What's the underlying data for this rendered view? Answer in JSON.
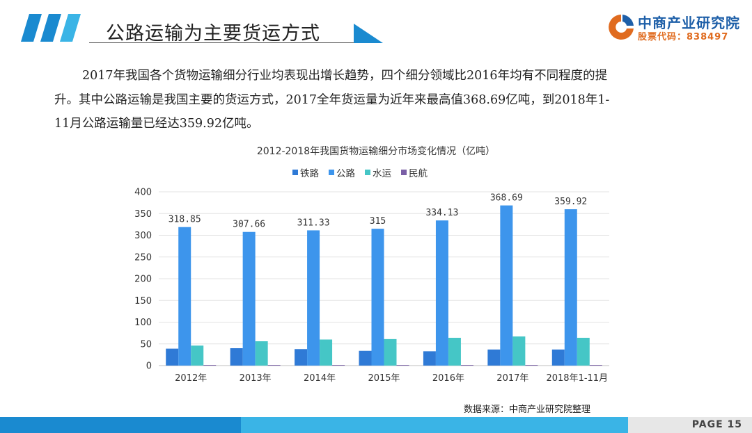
{
  "header": {
    "title": "公路运输为主要货运方式"
  },
  "logo": {
    "name": "中商产业研究院",
    "code": "股票代码：838497"
  },
  "paragraph": {
    "line1": "2017年我国各个货物运输细分行业均表现出增长趋势，四个细分领域比2016年均有不同程度的提",
    "line2": "升。其中公路运输是我国主要的货运方式，2017全年货运量为近年来最高值368.69亿吨，到2018年1-",
    "line3": "11月公路运输量已经达359.92亿吨。"
  },
  "chart_data": {
    "type": "bar",
    "title": "2012-2018年我国货物运输细分市场变化情况（亿吨）",
    "categories": [
      "2012年",
      "2013年",
      "2014年",
      "2015年",
      "2016年",
      "2017年",
      "2018年1-11月"
    ],
    "ylim": [
      0,
      400
    ],
    "yticks": [
      0,
      50,
      100,
      150,
      200,
      250,
      300,
      350,
      400
    ],
    "legend_position": "top-center",
    "grid": true,
    "series": [
      {
        "name": "铁路",
        "color": "#2f7ad6",
        "values": [
          39,
          40,
          38,
          34,
          33,
          37,
          37
        ],
        "labels": null
      },
      {
        "name": "公路",
        "color": "#3d95ec",
        "values": [
          318.85,
          307.66,
          311.33,
          315,
          334.13,
          368.69,
          359.92
        ],
        "labels": [
          "318.85",
          "307.66",
          "311.33",
          "315",
          "334.13",
          "368.69",
          "359.92"
        ]
      },
      {
        "name": "水运",
        "color": "#45c6c6",
        "values": [
          46,
          56,
          60,
          61,
          64,
          67,
          64
        ],
        "labels": null
      },
      {
        "name": "民航",
        "color": "#7a5fa6",
        "values": [
          0.06,
          0.06,
          0.06,
          0.06,
          0.07,
          0.07,
          0.07
        ],
        "labels": null
      }
    ]
  },
  "source": "数据来源：中商产业研究院整理",
  "footer": {
    "page_label": "PAGE  15"
  }
}
